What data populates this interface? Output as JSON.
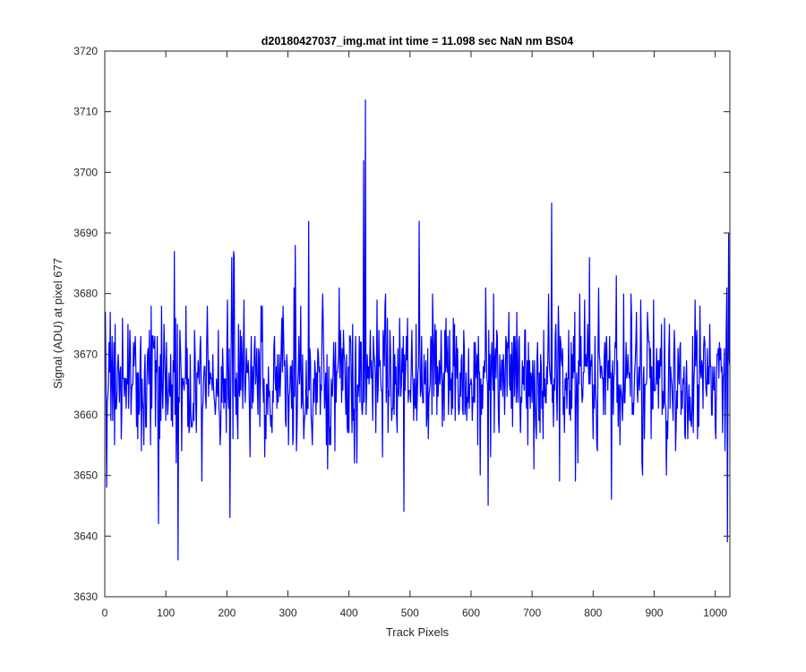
{
  "chart_data": {
    "type": "line",
    "title": "d20180427037_img.mat int time = 11.098 sec  NaN nm BS04",
    "xlabel": "Track Pixels",
    "ylabel": "Signal (ADU) at pixel 677",
    "xlim": [
      0,
      1024
    ],
    "ylim": [
      3630,
      3720
    ],
    "x_ticks": [
      0,
      100,
      200,
      300,
      400,
      500,
      600,
      700,
      800,
      900,
      1000
    ],
    "y_ticks": [
      3630,
      3640,
      3650,
      3660,
      3670,
      3680,
      3690,
      3700,
      3710,
      3720
    ],
    "grid": false,
    "series_color": "#0000ff",
    "series": [
      {
        "x_start": 1,
        "x_step": 1,
        "count": 1024,
        "mean": 3666,
        "spread": 6,
        "min": 3636,
        "max": 3712,
        "notable_points": [
          {
            "x": 120,
            "y": 3636
          },
          {
            "x": 3,
            "y": 3648
          },
          {
            "x": 88,
            "y": 3642
          },
          {
            "x": 114,
            "y": 3687
          },
          {
            "x": 205,
            "y": 3643
          },
          {
            "x": 208,
            "y": 3686
          },
          {
            "x": 312,
            "y": 3688
          },
          {
            "x": 334,
            "y": 3692
          },
          {
            "x": 424,
            "y": 3702
          },
          {
            "x": 427,
            "y": 3712
          },
          {
            "x": 515,
            "y": 3692
          },
          {
            "x": 490,
            "y": 3644
          },
          {
            "x": 628,
            "y": 3645
          },
          {
            "x": 732,
            "y": 3695
          },
          {
            "x": 830,
            "y": 3646
          },
          {
            "x": 920,
            "y": 3650
          },
          {
            "x": 1020,
            "y": 3639
          },
          {
            "x": 1022,
            "y": 3690
          }
        ]
      }
    ]
  }
}
